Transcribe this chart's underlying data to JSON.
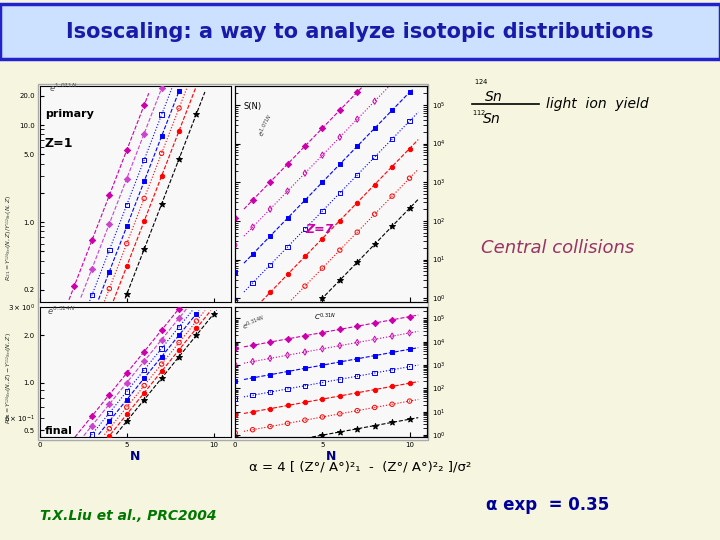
{
  "bg_color": "#f5f5e0",
  "title": "Isoscaling: a way to analyze isotopic distributions",
  "title_color": "#1a1aaa",
  "title_fontsize": 15,
  "title_bg": "#cce0ff",
  "title_border": "#2222cc",
  "Z7_color": "#cc00aa",
  "N_color": "#000080",
  "central_collisions": "Central collisions",
  "central_color": "#993366",
  "light_ion_yield": "light  ion  yield",
  "formula_text": "α = 4 [ (Z°/ A°)²₁  -  (Z°/ A°)²₂ ]/σ²",
  "formula_color": "#000000",
  "alpha_exp": "α exp  = 0.35",
  "alpha_color": "#000099",
  "citation": "T.X.Liu et al., PRC2004",
  "citation_color": "#007700"
}
